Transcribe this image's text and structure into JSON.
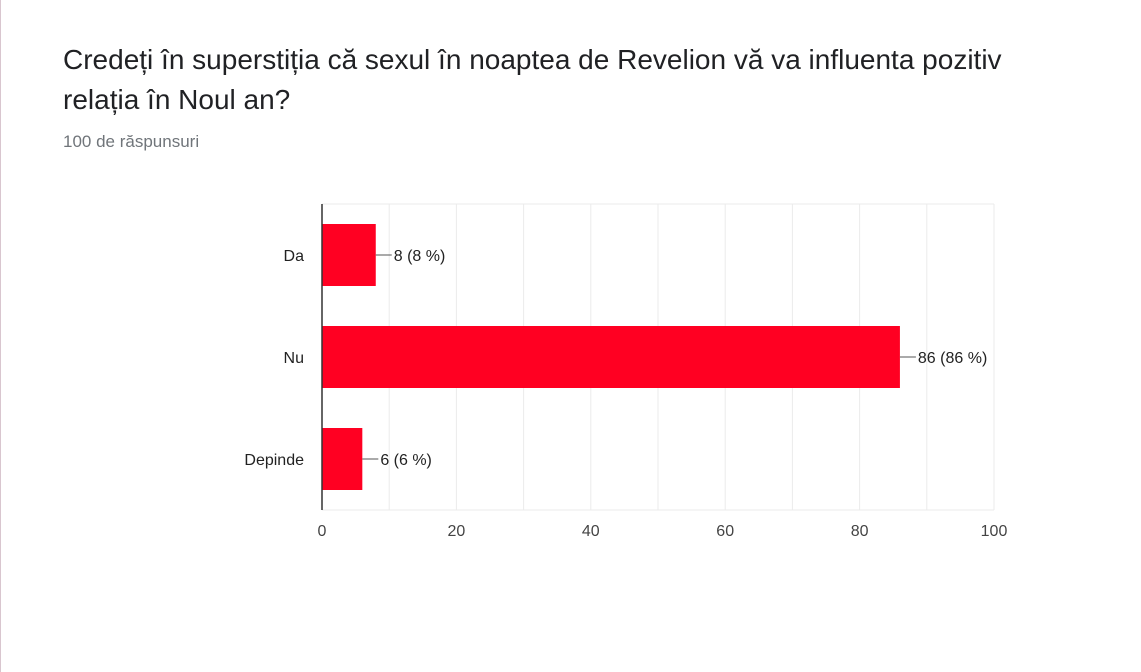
{
  "form": {
    "question": "Credeți în superstiția că sexul în noaptea de Revelion vă va influenta pozitiv relația în Noul an?",
    "response_count": "100 de răspunsuri"
  },
  "colors": {
    "bar": "#ff0022",
    "grid": "#ebebeb",
    "axis": "#333333",
    "text": "#222222",
    "tick_text": "#444444"
  },
  "chart_data": {
    "type": "bar",
    "orientation": "horizontal",
    "categories": [
      "Da",
      "Nu",
      "Depinde"
    ],
    "values": [
      8,
      86,
      6
    ],
    "data_labels": [
      "8 (8 %)",
      "86 (86 %)",
      "6 (6 %)"
    ],
    "xlim": [
      0,
      100
    ],
    "xticks": [
      0,
      20,
      40,
      60,
      80,
      100
    ],
    "grid": true,
    "legend": "none"
  }
}
